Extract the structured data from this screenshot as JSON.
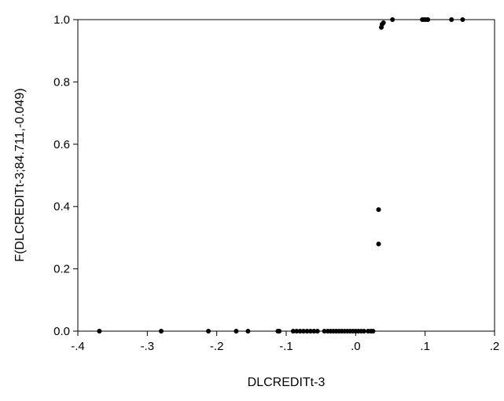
{
  "chart_data": {
    "type": "scatter",
    "title": "",
    "xlabel": "DLCREDITt-3",
    "ylabel": "F(DLCREDITt-3;84.711,-0.049)",
    "xlim": [
      -0.4,
      0.2
    ],
    "ylim": [
      0.0,
      1.0
    ],
    "xticks": [
      -0.4,
      -0.3,
      -0.2,
      -0.1,
      0.0,
      0.1,
      0.2
    ],
    "xtick_labels": [
      "-.4",
      "-.3",
      "-.2",
      "-.1",
      ".0",
      ".1",
      ".2"
    ],
    "yticks": [
      0.0,
      0.2,
      0.4,
      0.6,
      0.8,
      1.0
    ],
    "ytick_labels": [
      "0.0",
      "0.2",
      "0.4",
      "0.6",
      "0.8",
      "1.0"
    ],
    "grid": false,
    "marker_color": "#000000",
    "points": [
      [
        -0.369,
        0.0
      ],
      [
        -0.28,
        0.0
      ],
      [
        -0.212,
        0.0
      ],
      [
        -0.172,
        0.0
      ],
      [
        -0.155,
        0.0
      ],
      [
        -0.112,
        0.0
      ],
      [
        -0.11,
        0.0
      ],
      [
        -0.09,
        0.0
      ],
      [
        -0.085,
        0.0
      ],
      [
        -0.08,
        0.0
      ],
      [
        -0.075,
        0.0
      ],
      [
        -0.07,
        0.0
      ],
      [
        -0.065,
        0.0
      ],
      [
        -0.06,
        0.0
      ],
      [
        -0.055,
        0.0
      ],
      [
        -0.045,
        0.0
      ],
      [
        -0.04,
        0.0
      ],
      [
        -0.036,
        0.0
      ],
      [
        -0.032,
        0.0
      ],
      [
        -0.028,
        0.0
      ],
      [
        -0.024,
        0.0
      ],
      [
        -0.02,
        0.0
      ],
      [
        -0.016,
        0.0
      ],
      [
        -0.012,
        0.0
      ],
      [
        -0.008,
        0.0
      ],
      [
        -0.004,
        0.0
      ],
      [
        0.0,
        0.0
      ],
      [
        0.004,
        0.0
      ],
      [
        0.008,
        0.0
      ],
      [
        0.012,
        0.0
      ],
      [
        0.018,
        0.0
      ],
      [
        0.022,
        0.0
      ],
      [
        0.025,
        0.0
      ],
      [
        0.033,
        0.28
      ],
      [
        0.033,
        0.39
      ],
      [
        0.037,
        0.975
      ],
      [
        0.038,
        0.985
      ],
      [
        0.04,
        0.99
      ],
      [
        0.053,
        1.0
      ],
      [
        0.096,
        1.0
      ],
      [
        0.099,
        1.0
      ],
      [
        0.101,
        1.0
      ],
      [
        0.104,
        1.0
      ],
      [
        0.138,
        1.0
      ],
      [
        0.154,
        1.0
      ]
    ]
  }
}
